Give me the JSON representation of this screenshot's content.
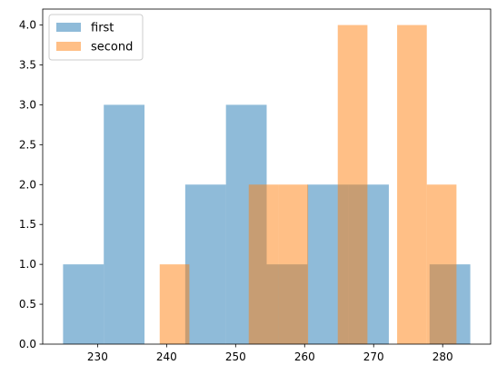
{
  "chart_data": {
    "type": "bar",
    "title": "",
    "xlabel": "",
    "ylabel": "",
    "xlim": [
      222.05,
      286.95
    ],
    "ylim": [
      0,
      4.2
    ],
    "xticks": [
      230,
      240,
      250,
      260,
      270,
      280
    ],
    "yticks": [
      0.0,
      0.5,
      1.0,
      1.5,
      2.0,
      2.5,
      3.0,
      3.5,
      4.0
    ],
    "xtick_labels": [
      "230",
      "240",
      "250",
      "260",
      "270",
      "280"
    ],
    "ytick_labels": [
      "0.0",
      "0.5",
      "1.0",
      "1.5",
      "2.0",
      "2.5",
      "3.0",
      "3.5",
      "4.0"
    ],
    "grid": false,
    "legend_position": "upper left",
    "opacity": 0.5,
    "series": [
      {
        "name": "first",
        "color": "#1f77b4",
        "bin_edges": [
          225.0,
          230.9,
          236.8,
          242.7,
          248.6,
          254.5,
          260.4,
          266.3,
          272.2,
          278.1,
          284.0
        ],
        "counts": [
          1,
          3,
          0,
          2,
          3,
          1,
          2,
          2,
          0,
          1
        ]
      },
      {
        "name": "second",
        "color": "#ff7f0e",
        "bin_edges": [
          239.0,
          243.3,
          247.6,
          251.9,
          256.2,
          260.5,
          264.8,
          269.1,
          273.4,
          277.7,
          282.0
        ],
        "counts": [
          1,
          0,
          0,
          2,
          2,
          0,
          4,
          0,
          4,
          2
        ]
      }
    ]
  }
}
